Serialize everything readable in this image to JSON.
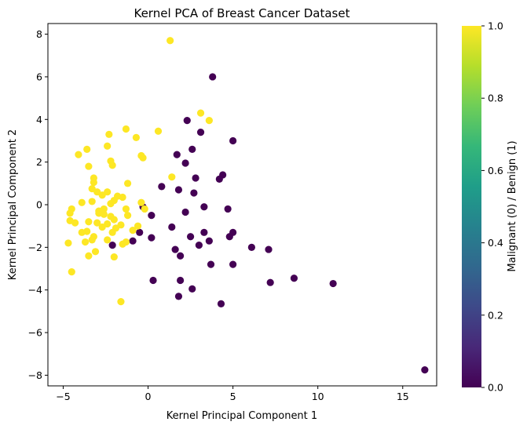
{
  "chart_data": {
    "type": "scatter",
    "title": "Kernel PCA of Breast Cancer Dataset",
    "xlabel": "Kernel Principal Component 1",
    "ylabel": "Kernel Principal Component 2",
    "xlim": [
      -5.9,
      17.0
    ],
    "ylim": [
      -8.5,
      8.5
    ],
    "xticks": [
      -5,
      0,
      5,
      10,
      15
    ],
    "yticks": [
      -8,
      -6,
      -4,
      -2,
      0,
      2,
      4,
      6,
      8
    ],
    "grid": false,
    "colorbar": {
      "label": "Malignant (0) / Benign (1)",
      "range": [
        0.0,
        1.0
      ],
      "ticks": [
        "0.0",
        "0.2",
        "0.4",
        "0.6",
        "0.8",
        "1.0"
      ],
      "colormap": "viridis",
      "colors": [
        "#440154",
        "#482878",
        "#3e4989",
        "#31688e",
        "#26828e",
        "#1f9e89",
        "#35b779",
        "#6ece58",
        "#b5de2b",
        "#fde725"
      ]
    },
    "series": [
      {
        "label": 0,
        "color": "#440154",
        "points": [
          [
            3.8,
            6.0
          ],
          [
            3.1,
            3.4
          ],
          [
            5.0,
            3.0
          ],
          [
            2.3,
            3.95
          ],
          [
            2.6,
            2.6
          ],
          [
            1.7,
            2.35
          ],
          [
            2.2,
            1.95
          ],
          [
            4.4,
            1.4
          ],
          [
            4.2,
            1.2
          ],
          [
            2.8,
            1.25
          ],
          [
            0.8,
            0.85
          ],
          [
            1.8,
            0.7
          ],
          [
            2.7,
            0.55
          ],
          [
            0.2,
            -0.5
          ],
          [
            -0.3,
            -0.1
          ],
          [
            3.3,
            -0.1
          ],
          [
            4.7,
            -0.2
          ],
          [
            2.2,
            -0.35
          ],
          [
            -0.5,
            -1.3
          ],
          [
            1.4,
            -1.05
          ],
          [
            3.3,
            -1.3
          ],
          [
            5.0,
            -1.3
          ],
          [
            4.8,
            -1.5
          ],
          [
            2.5,
            -1.5
          ],
          [
            3.6,
            -1.7
          ],
          [
            -0.9,
            -1.7
          ],
          [
            0.2,
            -1.55
          ],
          [
            3.0,
            -1.9
          ],
          [
            1.6,
            -2.1
          ],
          [
            6.1,
            -2.0
          ],
          [
            7.1,
            -2.1
          ],
          [
            1.9,
            -2.4
          ],
          [
            5.0,
            -2.8
          ],
          [
            3.7,
            -2.8
          ],
          [
            0.3,
            -3.55
          ],
          [
            1.9,
            -3.55
          ],
          [
            7.2,
            -3.65
          ],
          [
            8.6,
            -3.45
          ],
          [
            10.9,
            -3.7
          ],
          [
            2.6,
            -3.95
          ],
          [
            1.8,
            -4.3
          ],
          [
            4.3,
            -4.65
          ],
          [
            16.3,
            -7.75
          ],
          [
            -2.1,
            -1.9
          ]
        ]
      },
      {
        "label": 1,
        "color": "#fde725",
        "points": [
          [
            1.3,
            7.7
          ],
          [
            3.1,
            4.3
          ],
          [
            3.6,
            3.95
          ],
          [
            -1.3,
            3.55
          ],
          [
            0.6,
            3.45
          ],
          [
            -0.7,
            3.15
          ],
          [
            -2.3,
            3.3
          ],
          [
            -2.4,
            2.75
          ],
          [
            -3.6,
            2.6
          ],
          [
            -4.1,
            2.35
          ],
          [
            -0.4,
            2.3
          ],
          [
            -0.3,
            2.2
          ],
          [
            -2.2,
            2.05
          ],
          [
            -2.1,
            1.85
          ],
          [
            -3.5,
            1.8
          ],
          [
            -3.2,
            1.25
          ],
          [
            -3.2,
            1.05
          ],
          [
            -1.2,
            1.0
          ],
          [
            1.4,
            1.3
          ],
          [
            -3.3,
            0.75
          ],
          [
            -3.0,
            0.6
          ],
          [
            -2.4,
            0.6
          ],
          [
            -2.7,
            0.45
          ],
          [
            -1.8,
            0.4
          ],
          [
            -1.5,
            0.35
          ],
          [
            -2.0,
            0.2
          ],
          [
            -3.3,
            0.15
          ],
          [
            -3.9,
            0.1
          ],
          [
            -0.4,
            0.1
          ],
          [
            -2.2,
            0.05
          ],
          [
            -4.5,
            -0.2
          ],
          [
            -2.6,
            -0.2
          ],
          [
            -1.3,
            -0.2
          ],
          [
            -0.2,
            -0.2
          ],
          [
            -4.6,
            -0.4
          ],
          [
            -2.9,
            -0.4
          ],
          [
            -2.6,
            -0.45
          ],
          [
            -2.2,
            -0.55
          ],
          [
            -1.2,
            -0.5
          ],
          [
            -2.0,
            -0.7
          ],
          [
            -3.5,
            -0.8
          ],
          [
            -4.6,
            -0.75
          ],
          [
            -4.3,
            -0.85
          ],
          [
            -3.0,
            -0.85
          ],
          [
            -2.4,
            -0.9
          ],
          [
            -1.9,
            -1.1
          ],
          [
            -2.7,
            -1.05
          ],
          [
            -0.6,
            -1.0
          ],
          [
            -1.6,
            -0.95
          ],
          [
            -3.6,
            -1.25
          ],
          [
            -3.9,
            -1.3
          ],
          [
            -2.1,
            -1.3
          ],
          [
            -3.2,
            -1.5
          ],
          [
            -3.3,
            -1.65
          ],
          [
            -1.3,
            -1.75
          ],
          [
            -1.5,
            -1.85
          ],
          [
            -3.7,
            -1.75
          ],
          [
            -2.4,
            -1.65
          ],
          [
            -4.7,
            -1.8
          ],
          [
            -3.1,
            -2.2
          ],
          [
            -3.5,
            -2.4
          ],
          [
            -2.0,
            -2.45
          ],
          [
            -4.5,
            -3.15
          ],
          [
            -1.6,
            -4.55
          ],
          [
            -2.9,
            -0.3
          ],
          [
            -0.9,
            -1.2
          ]
        ]
      }
    ]
  }
}
